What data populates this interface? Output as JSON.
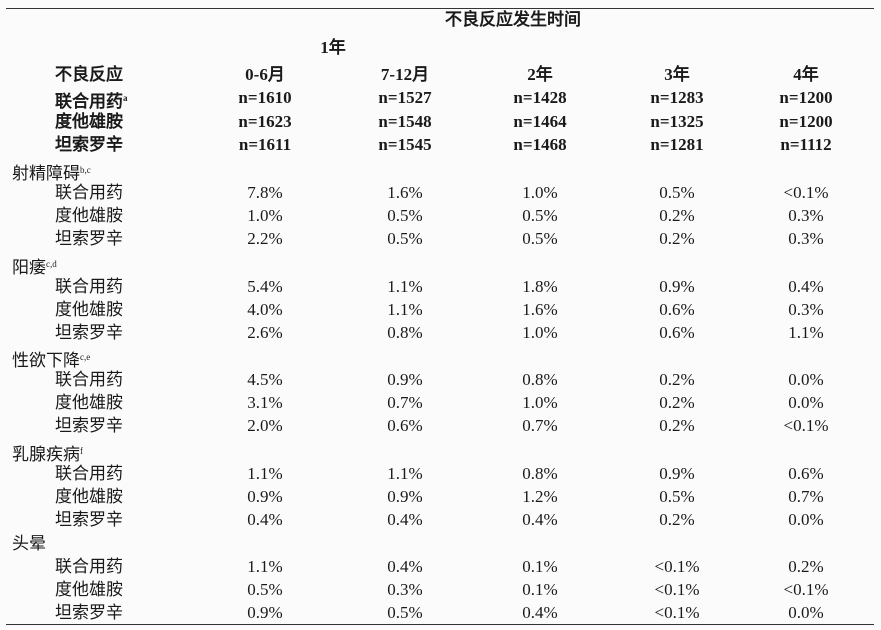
{
  "header": {
    "title": "不良反应发生时间",
    "span": "1年",
    "columns": [
      "不良反应",
      "0-6月",
      "7-12月",
      "2年",
      "3年",
      "4年"
    ]
  },
  "n_rows": [
    {
      "label": "联合用药",
      "note": "a",
      "cells": [
        "n=1610",
        "n=1527",
        "n=1428",
        "n=1283",
        "n=1200"
      ]
    },
    {
      "label": "度他雄胺",
      "cells": [
        "n=1623",
        "n=1548",
        "n=1464",
        "n=1325",
        "n=1200"
      ]
    },
    {
      "label": "坦索罗辛",
      "cells": [
        "n=1611",
        "n=1545",
        "n=1468",
        "n=1281",
        "n=1112"
      ]
    }
  ],
  "groups": [
    {
      "label": "射精障碍",
      "note": "b,c",
      "rows": [
        {
          "label": "联合用药",
          "cells": [
            "7.8%",
            "1.6%",
            "1.0%",
            "0.5%",
            "<0.1%"
          ]
        },
        {
          "label": "度他雄胺",
          "cells": [
            "1.0%",
            "0.5%",
            "0.5%",
            "0.2%",
            "0.3%"
          ]
        },
        {
          "label": "坦索罗辛",
          "cells": [
            "2.2%",
            "0.5%",
            "0.5%",
            "0.2%",
            "0.3%"
          ]
        }
      ]
    },
    {
      "label": "阳痿",
      "note": "c,d",
      "rows": [
        {
          "label": "联合用药",
          "cells": [
            "5.4%",
            "1.1%",
            "1.8%",
            "0.9%",
            "0.4%"
          ]
        },
        {
          "label": "度他雄胺",
          "cells": [
            "4.0%",
            "1.1%",
            "1.6%",
            "0.6%",
            "0.3%"
          ]
        },
        {
          "label": "坦索罗辛",
          "cells": [
            "2.6%",
            "0.8%",
            "1.0%",
            "0.6%",
            "1.1%"
          ]
        }
      ]
    },
    {
      "label": "性欲下降",
      "note": "c,e",
      "rows": [
        {
          "label": "联合用药",
          "cells": [
            "4.5%",
            "0.9%",
            "0.8%",
            "0.2%",
            "0.0%"
          ]
        },
        {
          "label": "度他雄胺",
          "cells": [
            "3.1%",
            "0.7%",
            "1.0%",
            "0.2%",
            "0.0%"
          ]
        },
        {
          "label": "坦索罗辛",
          "cells": [
            "2.0%",
            "0.6%",
            "0.7%",
            "0.2%",
            "<0.1%"
          ]
        }
      ]
    },
    {
      "label": "乳腺疾病",
      "note": "f",
      "rows": [
        {
          "label": "联合用药",
          "cells": [
            "1.1%",
            "1.1%",
            "0.8%",
            "0.9%",
            "0.6%"
          ]
        },
        {
          "label": "度他雄胺",
          "cells": [
            "0.9%",
            "0.9%",
            "1.2%",
            "0.5%",
            "0.7%"
          ]
        },
        {
          "label": "坦索罗辛",
          "cells": [
            "0.4%",
            "0.4%",
            "0.4%",
            "0.2%",
            "0.0%"
          ]
        }
      ]
    },
    {
      "label": "头晕",
      "rows": [
        {
          "label": "联合用药",
          "cells": [
            "1.1%",
            "0.4%",
            "0.1%",
            "<0.1%",
            "0.2%"
          ]
        },
        {
          "label": "度他雄胺",
          "cells": [
            "0.5%",
            "0.3%",
            "0.1%",
            "<0.1%",
            "<0.1%"
          ]
        },
        {
          "label": "坦索罗辛",
          "cells": [
            "0.9%",
            "0.5%",
            "0.4%",
            "<0.1%",
            "0.0%"
          ]
        }
      ]
    }
  ]
}
